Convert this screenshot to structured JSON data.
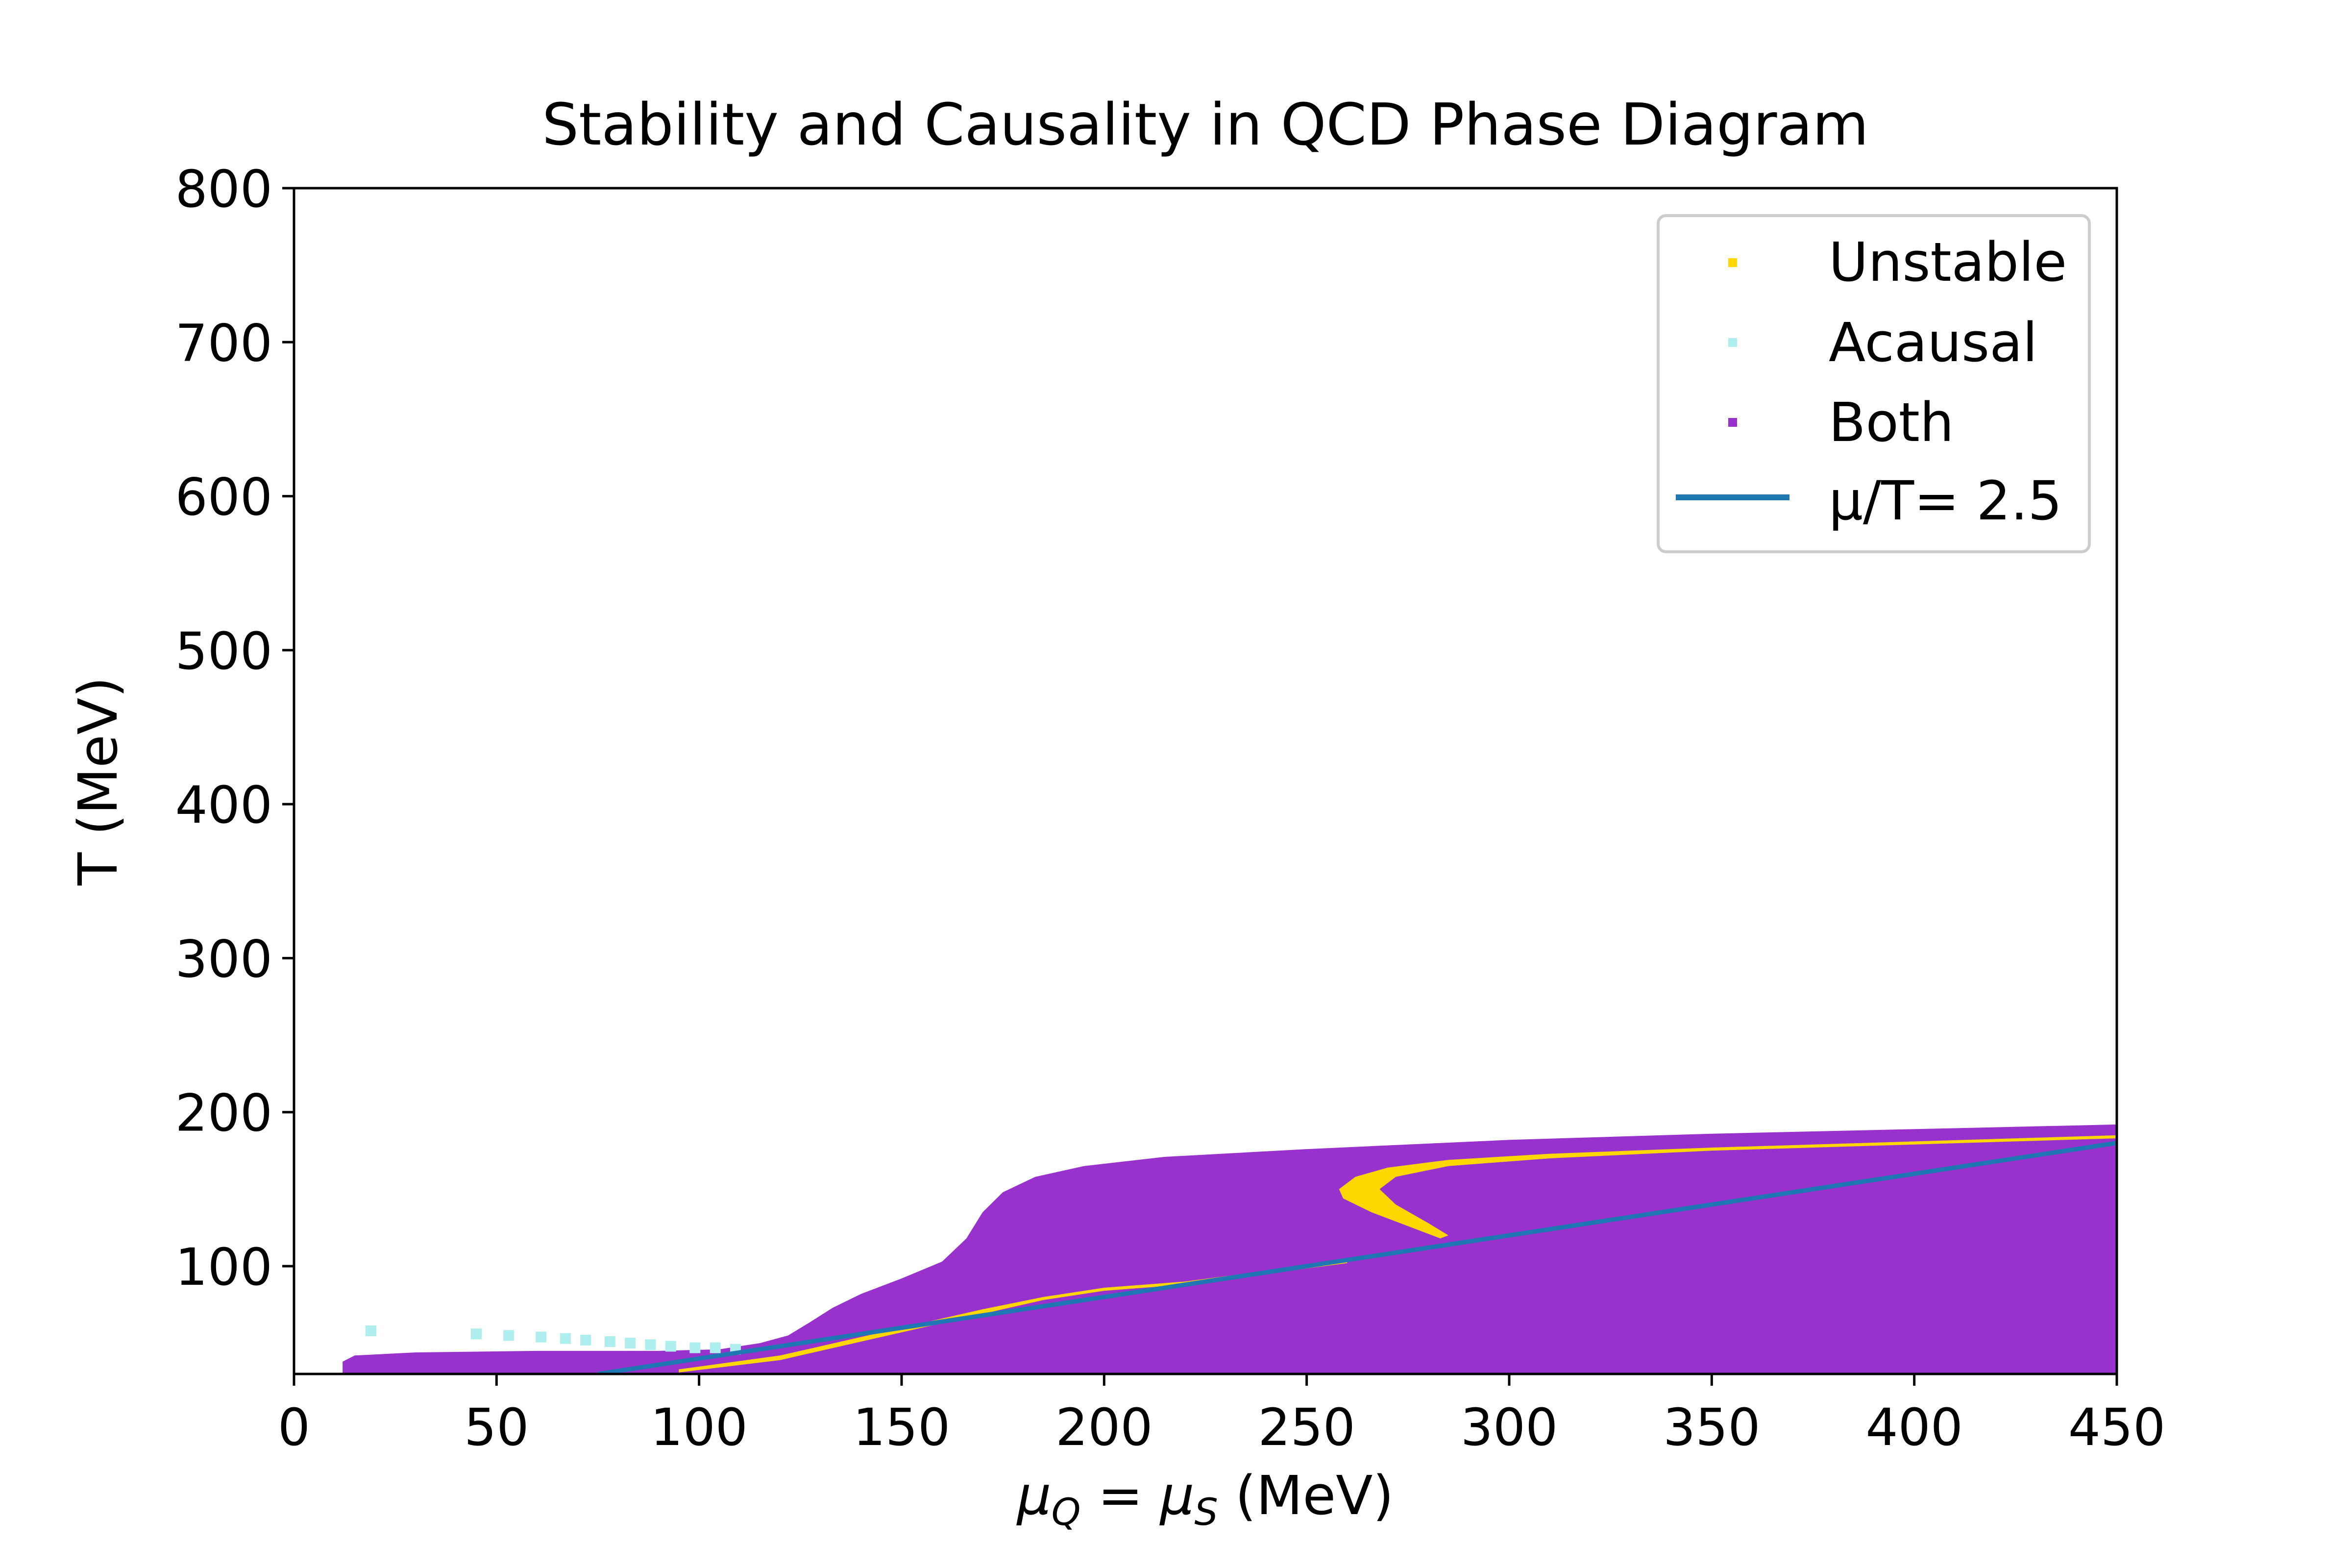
{
  "chart_data": {
    "type": "scatter",
    "title": "Stability and Causality in QCD Phase Diagram",
    "xlabel": {
      "main": "μ",
      "sub1": "Q",
      "mid": " = μ",
      "sub2": "S",
      "tail": " (MeV)"
    },
    "ylabel": "T (MeV)",
    "xlim": [
      0,
      450
    ],
    "ylim": [
      30,
      800
    ],
    "xticks": [
      0,
      50,
      100,
      150,
      200,
      250,
      300,
      350,
      400,
      450
    ],
    "yticks": [
      100,
      200,
      300,
      400,
      500,
      600,
      700,
      800
    ],
    "grid": false,
    "legend_position": "top-right",
    "colors": {
      "unstable": "#ffd700",
      "acausal": "#afeeee",
      "both": "#9932cc",
      "line": "#1f77b4"
    },
    "series": [
      {
        "name": "Unstable",
        "kind": "region",
        "color": "#ffd700",
        "regions": [
          {
            "shape": "filament",
            "points": [
              [
                258,
                150
              ],
              [
                262,
                158
              ],
              [
                270,
                164
              ],
              [
                285,
                169
              ],
              [
                310,
                173
              ],
              [
                350,
                177
              ],
              [
                400,
                181
              ],
              [
                450,
                185
              ],
              [
                450,
                183
              ],
              [
                400,
                179
              ],
              [
                350,
                175
              ],
              [
                310,
                170
              ],
              [
                285,
                165
              ],
              [
                272,
                158
              ],
              [
                268,
                150
              ],
              [
                272,
                140
              ],
              [
                280,
                128
              ],
              [
                285,
                120
              ],
              [
                283,
                118
              ],
              [
                275,
                126
              ],
              [
                266,
                135
              ],
              [
                259,
                144
              ]
            ]
          },
          {
            "shape": "filament",
            "points": [
              [
                95,
                33
              ],
              [
                120,
                42
              ],
              [
                150,
                60
              ],
              [
                170,
                72
              ],
              [
                185,
                80
              ],
              [
                200,
                86
              ],
              [
                220,
                90
              ],
              [
                240,
                97
              ],
              [
                260,
                104
              ],
              [
                260,
                102
              ],
              [
                240,
                95
              ],
              [
                220,
                88
              ],
              [
                200,
                84
              ],
              [
                185,
                78
              ],
              [
                170,
                69
              ],
              [
                150,
                57
              ],
              [
                120,
                39
              ],
              [
                95,
                31
              ]
            ]
          }
        ]
      },
      {
        "name": "Acausal",
        "kind": "points",
        "color": "#afeeee",
        "points": [
          [
            19,
            58
          ],
          [
            45,
            56
          ],
          [
            53,
            55
          ],
          [
            61,
            54
          ],
          [
            67,
            53
          ],
          [
            72,
            52
          ],
          [
            78,
            51
          ],
          [
            83,
            50
          ],
          [
            88,
            49
          ],
          [
            93,
            48
          ],
          [
            99,
            47
          ],
          [
            104,
            47
          ],
          [
            109,
            46
          ]
        ]
      },
      {
        "name": "Both",
        "kind": "region",
        "color": "#9932cc",
        "boundary": [
          [
            12,
            30
          ],
          [
            12,
            38
          ],
          [
            15,
            42
          ],
          [
            30,
            44
          ],
          [
            60,
            45
          ],
          [
            90,
            45
          ],
          [
            105,
            46
          ],
          [
            115,
            50
          ],
          [
            122,
            55
          ],
          [
            127,
            63
          ],
          [
            133,
            73
          ],
          [
            140,
            82
          ],
          [
            150,
            92
          ],
          [
            160,
            103
          ],
          [
            166,
            118
          ],
          [
            170,
            135
          ],
          [
            175,
            148
          ],
          [
            183,
            158
          ],
          [
            195,
            165
          ],
          [
            215,
            171
          ],
          [
            250,
            176
          ],
          [
            300,
            182
          ],
          [
            350,
            186
          ],
          [
            400,
            189
          ],
          [
            450,
            192
          ],
          [
            450,
            30
          ]
        ]
      },
      {
        "name": "μ/T= 2.5",
        "kind": "line",
        "color": "#1f77b4",
        "ratio": 2.5,
        "x_start": 75
      }
    ]
  }
}
